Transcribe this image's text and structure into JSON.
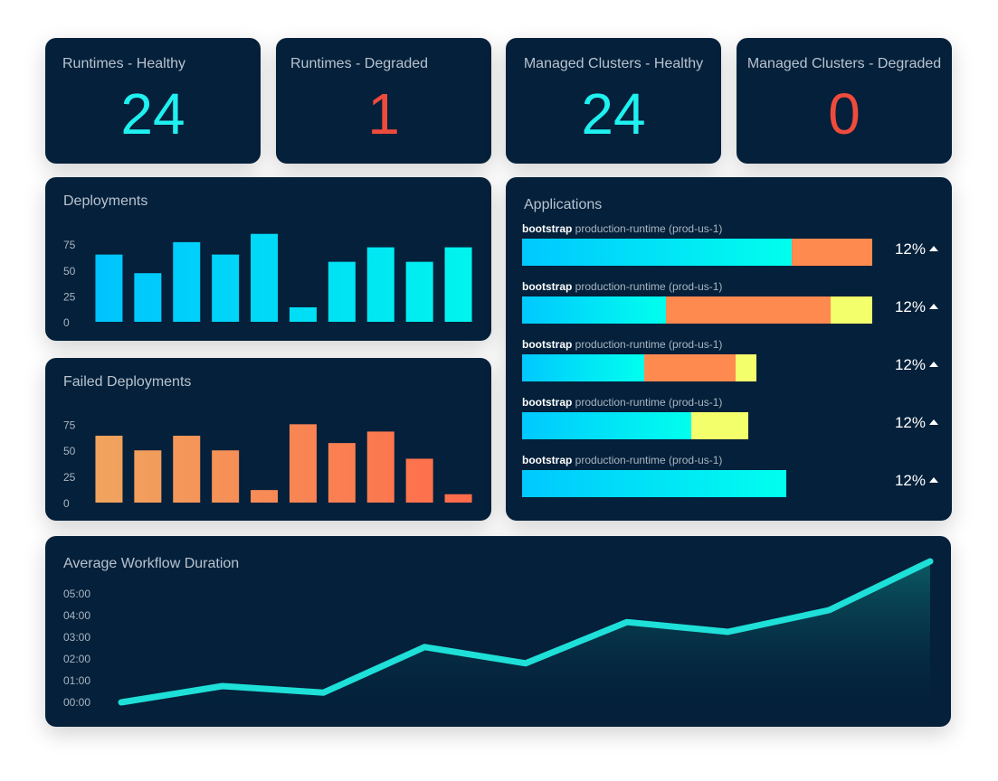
{
  "stats": [
    {
      "title": "Runtimes - Healthy",
      "value": "24",
      "status": "ok"
    },
    {
      "title": "Runtimes - Degraded",
      "value": "1",
      "status": "bad"
    },
    {
      "title": "Managed Clusters - Healthy",
      "value": "24",
      "status": "ok"
    },
    {
      "title": "Managed Clusters - Degraded",
      "value": "0",
      "status": "bad"
    }
  ],
  "deployments": {
    "title": "Deployments",
    "chart_data": {
      "type": "bar",
      "y_ticks": [
        "0",
        "25",
        "50",
        "75"
      ],
      "ylim": [
        0,
        90
      ],
      "values": [
        65,
        47,
        77,
        65,
        85,
        14,
        58,
        72,
        58,
        72
      ],
      "gradient": [
        "#00c2ff",
        "#00f5ee"
      ]
    }
  },
  "failed_deployments": {
    "title": "Failed Deployments",
    "chart_data": {
      "type": "bar",
      "y_ticks": [
        "0",
        "25",
        "50",
        "75"
      ],
      "ylim": [
        0,
        90
      ],
      "values": [
        64,
        50,
        64,
        50,
        12,
        75,
        57,
        68,
        42,
        8
      ],
      "gradient": [
        "#f0a65f",
        "#ff6a4a"
      ]
    }
  },
  "applications": {
    "title": "Applications",
    "rows": [
      {
        "name": "bootstrap",
        "runtime": "production-runtime (prod-us-1)",
        "percent": "12%",
        "segments": [
          {
            "color": "blue",
            "width": 0.77
          },
          {
            "color": "orange",
            "width": 0.23
          }
        ],
        "bar_fraction": 1.0
      },
      {
        "name": "bootstrap",
        "runtime": "production-runtime (prod-us-1)",
        "percent": "12%",
        "segments": [
          {
            "color": "blue",
            "width": 0.41
          },
          {
            "color": "orange",
            "width": 0.47
          },
          {
            "color": "yellow",
            "width": 0.12
          }
        ],
        "bar_fraction": 1.0
      },
      {
        "name": "bootstrap",
        "runtime": "production-runtime (prod-us-1)",
        "percent": "12%",
        "segments": [
          {
            "color": "blue",
            "width": 0.52
          },
          {
            "color": "orange",
            "width": 0.39
          },
          {
            "color": "yellow",
            "width": 0.09
          }
        ],
        "bar_fraction": 0.67
      },
      {
        "name": "bootstrap",
        "runtime": "production-runtime (prod-us-1)",
        "percent": "12%",
        "segments": [
          {
            "color": "blue",
            "width": 0.75
          },
          {
            "color": "yellow",
            "width": 0.25
          }
        ],
        "bar_fraction": 0.645
      },
      {
        "name": "bootstrap",
        "runtime": "production-runtime (prod-us-1)",
        "percent": "12%",
        "segments": [
          {
            "color": "blue",
            "width": 1.0
          }
        ],
        "bar_fraction": 0.755
      }
    ]
  },
  "workflow": {
    "title": "Average Workflow Duration",
    "chart_data": {
      "type": "area",
      "y_ticks": [
        "00:00",
        "01:00",
        "02:00",
        "03:00",
        "04:00",
        "05:00"
      ],
      "ylim": [
        0,
        5
      ],
      "values": [
        0.0,
        0.75,
        0.45,
        2.55,
        1.8,
        3.7,
        3.25,
        4.25,
        6.5
      ],
      "line_color": "#1ee0d8"
    }
  }
}
